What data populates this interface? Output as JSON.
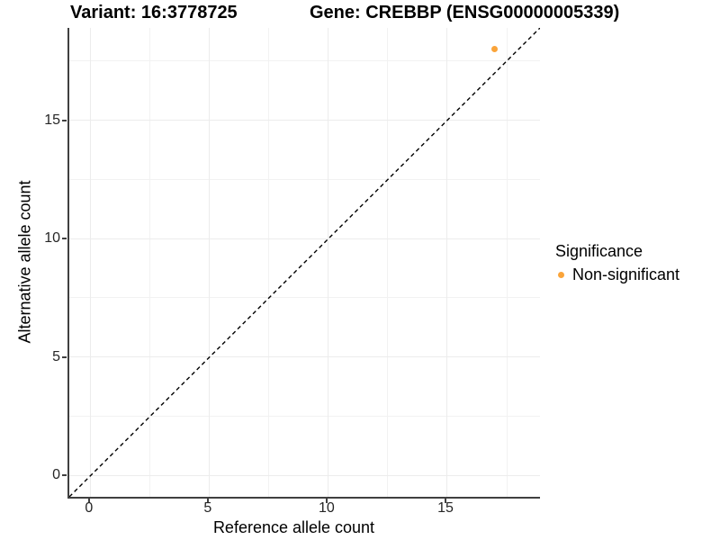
{
  "titles": {
    "variant": "Variant: 16:3778725",
    "gene": "Gene: CREBBP (ENSG00000005339)"
  },
  "chart_data": {
    "type": "scatter",
    "title": "Variant: 16:3778725 | Gene: CREBBP (ENSG00000005339)",
    "xlabel": "Reference allele count",
    "ylabel": "Alternative allele count",
    "xlim": [
      -0.9,
      18.9
    ],
    "ylim": [
      -0.9,
      18.9
    ],
    "x_major_ticks": [
      0,
      5,
      10,
      15
    ],
    "y_major_ticks": [
      0,
      5,
      10,
      15
    ],
    "x_minor_ticks": [
      2.5,
      7.5,
      12.5,
      17.5
    ],
    "y_minor_ticks": [
      2.5,
      7.5,
      12.5,
      17.5
    ],
    "grid": true,
    "identity_line": {
      "style": "dashed",
      "color": "#000000",
      "from": [
        -0.9,
        -0.9
      ],
      "to": [
        18.9,
        18.9
      ]
    },
    "series": [
      {
        "name": "Non-significant",
        "color": "#FAA43A",
        "points": [
          {
            "x": 17,
            "y": 18
          }
        ]
      }
    ],
    "legend": {
      "title": "Significance",
      "position": "right",
      "entries": [
        {
          "label": "Non-significant",
          "color": "#FAA43A"
        }
      ]
    }
  }
}
